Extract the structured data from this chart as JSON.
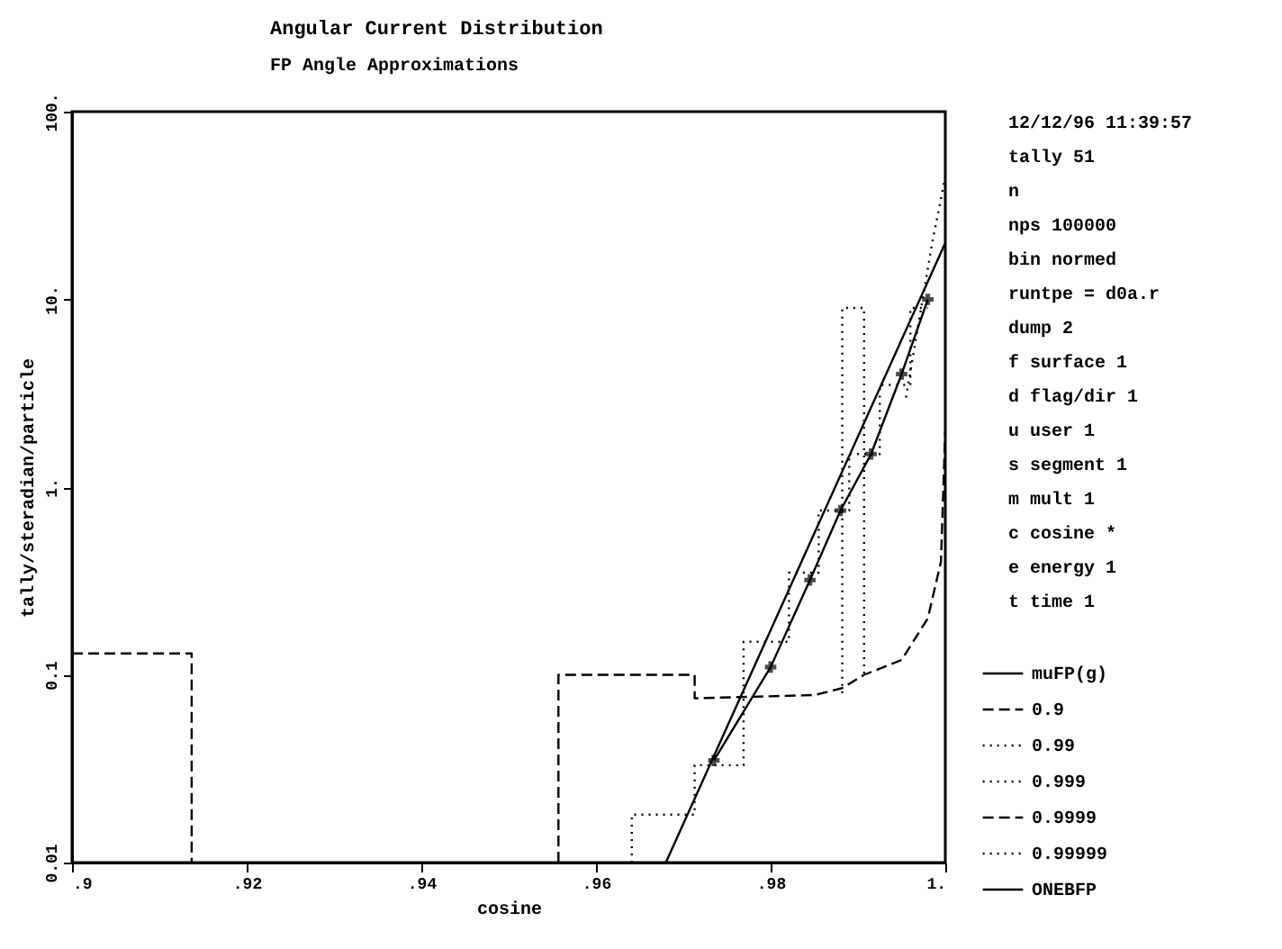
{
  "chart_data": {
    "type": "line",
    "title": "Angular Current Distribution",
    "subtitle": "FP Angle Approximations",
    "xlabel": "cosine",
    "ylabel": "tally/steradian/particle",
    "log": "y",
    "grid": false,
    "legend": "right",
    "xlim": [
      0.9,
      1.0
    ],
    "xticks": [
      {
        "value": 0.9,
        "label": ".9"
      },
      {
        "value": 0.92,
        "label": ".92"
      },
      {
        "value": 0.94,
        "label": ".94"
      },
      {
        "value": 0.96,
        "label": ".96"
      },
      {
        "value": 0.98,
        "label": ".98"
      },
      {
        "value": 1.0,
        "label": "1."
      }
    ],
    "ylim": [
      0.01,
      100
    ],
    "yticks": [
      0.01,
      0.1,
      {
        "value": 1,
        "label": "1."
      },
      {
        "value": 10,
        "label": "10."
      },
      {
        "value": 100,
        "label": "100."
      }
    ],
    "annotations": [
      "12/12/96 11:39:57",
      "tally 51",
      "n",
      "nps 100000",
      "bin normed",
      "runtpe = d0a.r",
      "dump 2",
      "f surface 1",
      "d flag/dir 1",
      "u user 1",
      "s segment 1",
      "m mult 1",
      "c cosine *",
      "e energy 1",
      "t time 1"
    ],
    "series": [
      {
        "name": "muFP(g)",
        "color": "#000000",
        "line_style": "solid",
        "x": [
          0.968,
          1.0
        ],
        "values": [
          0.01,
          20
        ]
      },
      {
        "name": "0.9",
        "color": "#000000",
        "line_style": "dashed",
        "x": [
          0.9,
          0.9137,
          0.9137
        ],
        "values": [
          0.13,
          0.13,
          0.01
        ]
      },
      {
        "name": "0.99",
        "color": "#000000",
        "line_style": "dotted",
        "x": [
          0.9882,
          0.9882,
          0.9907,
          0.9907
        ],
        "values": [
          0.08,
          9,
          9,
          0.1
        ]
      },
      {
        "name": "0.999",
        "color": "#000000",
        "line_style": "dotted",
        "x": [
          0.9641,
          0.9641,
          0.9713,
          0.9713,
          0.9769,
          0.9769,
          0.9821,
          0.9821,
          0.9855,
          0.9855,
          0.989,
          0.989,
          0.9925,
          0.9925,
          0.996,
          0.996,
          0.998
        ],
        "values": [
          0.01,
          0.018,
          0.018,
          0.033,
          0.033,
          0.15,
          0.15,
          0.35,
          0.35,
          0.75,
          0.75,
          1.5,
          1.5,
          3.5,
          3.5,
          9,
          9
        ]
      },
      {
        "name": "0.9999",
        "color": "#000000",
        "line_style": "dashed",
        "x": [
          0.9557,
          0.9557,
          0.9713,
          0.9713,
          0.985,
          0.9882,
          0.9907,
          0.995,
          0.998,
          0.9995,
          1.0
        ],
        "values": [
          0.01,
          0.1,
          0.1,
          0.075,
          0.078,
          0.085,
          0.1,
          0.12,
          0.2,
          0.4,
          2
        ]
      },
      {
        "name": "0.99999",
        "color": "#000000",
        "line_style": "dotted",
        "x": [
          0.9955,
          0.9985,
          1.0
        ],
        "values": [
          3,
          20,
          45
        ]
      },
      {
        "name": "ONEBFP",
        "color": "#000000",
        "line_style": "solid",
        "marker": "cross",
        "x": [
          0.9735,
          0.98,
          0.9845,
          0.988,
          0.9915,
          0.995,
          0.998
        ],
        "values": [
          0.035,
          0.11,
          0.32,
          0.75,
          1.5,
          4,
          10
        ]
      }
    ]
  }
}
